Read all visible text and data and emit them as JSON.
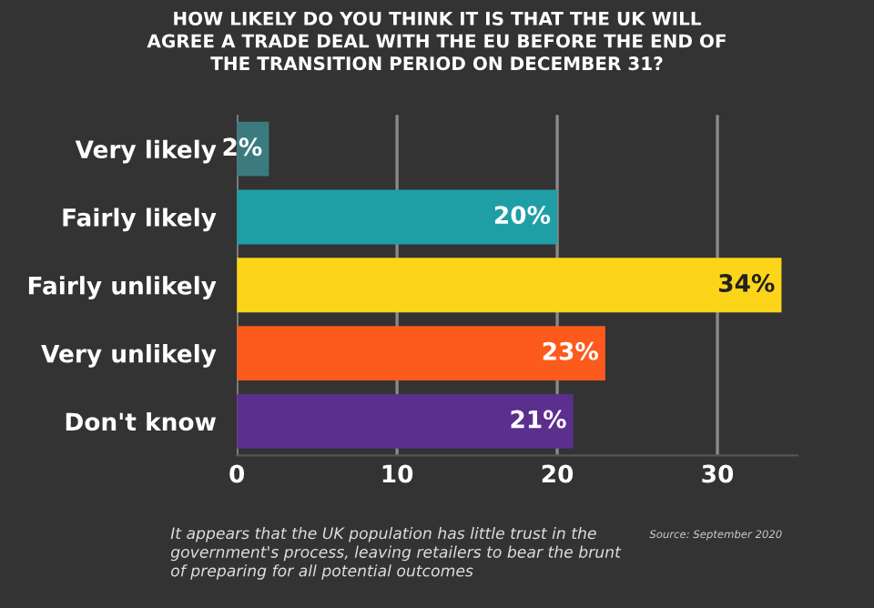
{
  "chart_data": {
    "type": "bar",
    "orientation": "horizontal",
    "title": "HOW LIKELY DO YOU THINK IT IS THAT THE UK WILL\nAGREE A TRADE DEAL WITH THE EU BEFORE THE END OF\nTHE TRANSITION PERIOD ON DECEMBER 31?",
    "categories": [
      "Very likely",
      "Fairly likely",
      "Fairly unlikely",
      "Very unlikely",
      "Don't know"
    ],
    "values": [
      2,
      20,
      34,
      23,
      21
    ],
    "colors": [
      "#3b7b80",
      "#1f9ea6",
      "#fcd41a",
      "#fd5a1e",
      "#5b2f8e"
    ],
    "value_labels": [
      "2%",
      "20%",
      "34%",
      "23%",
      "21%"
    ],
    "xlim": [
      0,
      35
    ],
    "xticks": [
      0,
      10,
      20,
      30
    ],
    "grid": "x",
    "annotations": [
      "It appears that the UK population has little trust in the\ngovernment's process, leaving retailers to bear the brunt\nof preparing for all potential outcomes",
      "Source: September 2020"
    ]
  }
}
